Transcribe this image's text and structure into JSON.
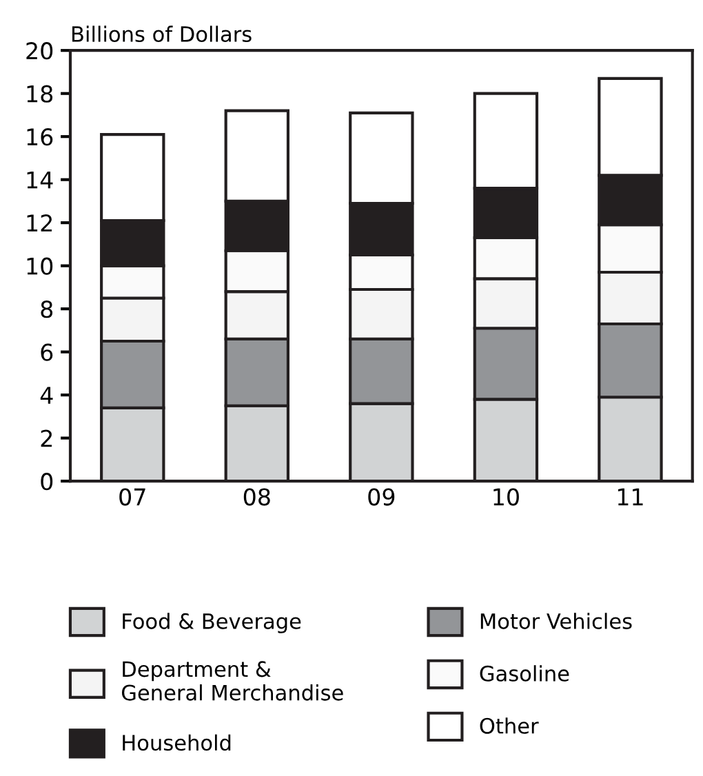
{
  "chart_data": {
    "type": "bar",
    "stacked": true,
    "ylabel": "Billions of Dollars",
    "categories": [
      "07",
      "08",
      "09",
      "10",
      "11"
    ],
    "series": [
      {
        "name": "Food & Beverage",
        "color": "#d1d3d4",
        "values": [
          3.4,
          3.5,
          3.6,
          3.8,
          3.9
        ]
      },
      {
        "name": "Motor Vehicles",
        "color": "#939598",
        "values": [
          3.1,
          3.1,
          3.0,
          3.3,
          3.4
        ]
      },
      {
        "name": "Department &\nGeneral Merchandise",
        "color": "#f4f4f4",
        "values": [
          2.0,
          2.2,
          2.3,
          2.3,
          2.4
        ]
      },
      {
        "name": "Gasoline",
        "color": "#fafafa",
        "values": [
          1.5,
          1.9,
          1.6,
          1.9,
          2.2
        ]
      },
      {
        "name": "Household",
        "color": "#231f20",
        "values": [
          2.1,
          2.3,
          2.4,
          2.3,
          2.3
        ]
      },
      {
        "name": "Other",
        "color": "#ffffff",
        "values": [
          4.0,
          4.2,
          4.2,
          4.4,
          4.5
        ]
      }
    ],
    "ylim": [
      0,
      20
    ],
    "yticks": [
      0,
      2,
      4,
      6,
      8,
      10,
      12,
      14,
      16,
      18,
      20
    ],
    "grid": false,
    "legend": "bottom"
  }
}
